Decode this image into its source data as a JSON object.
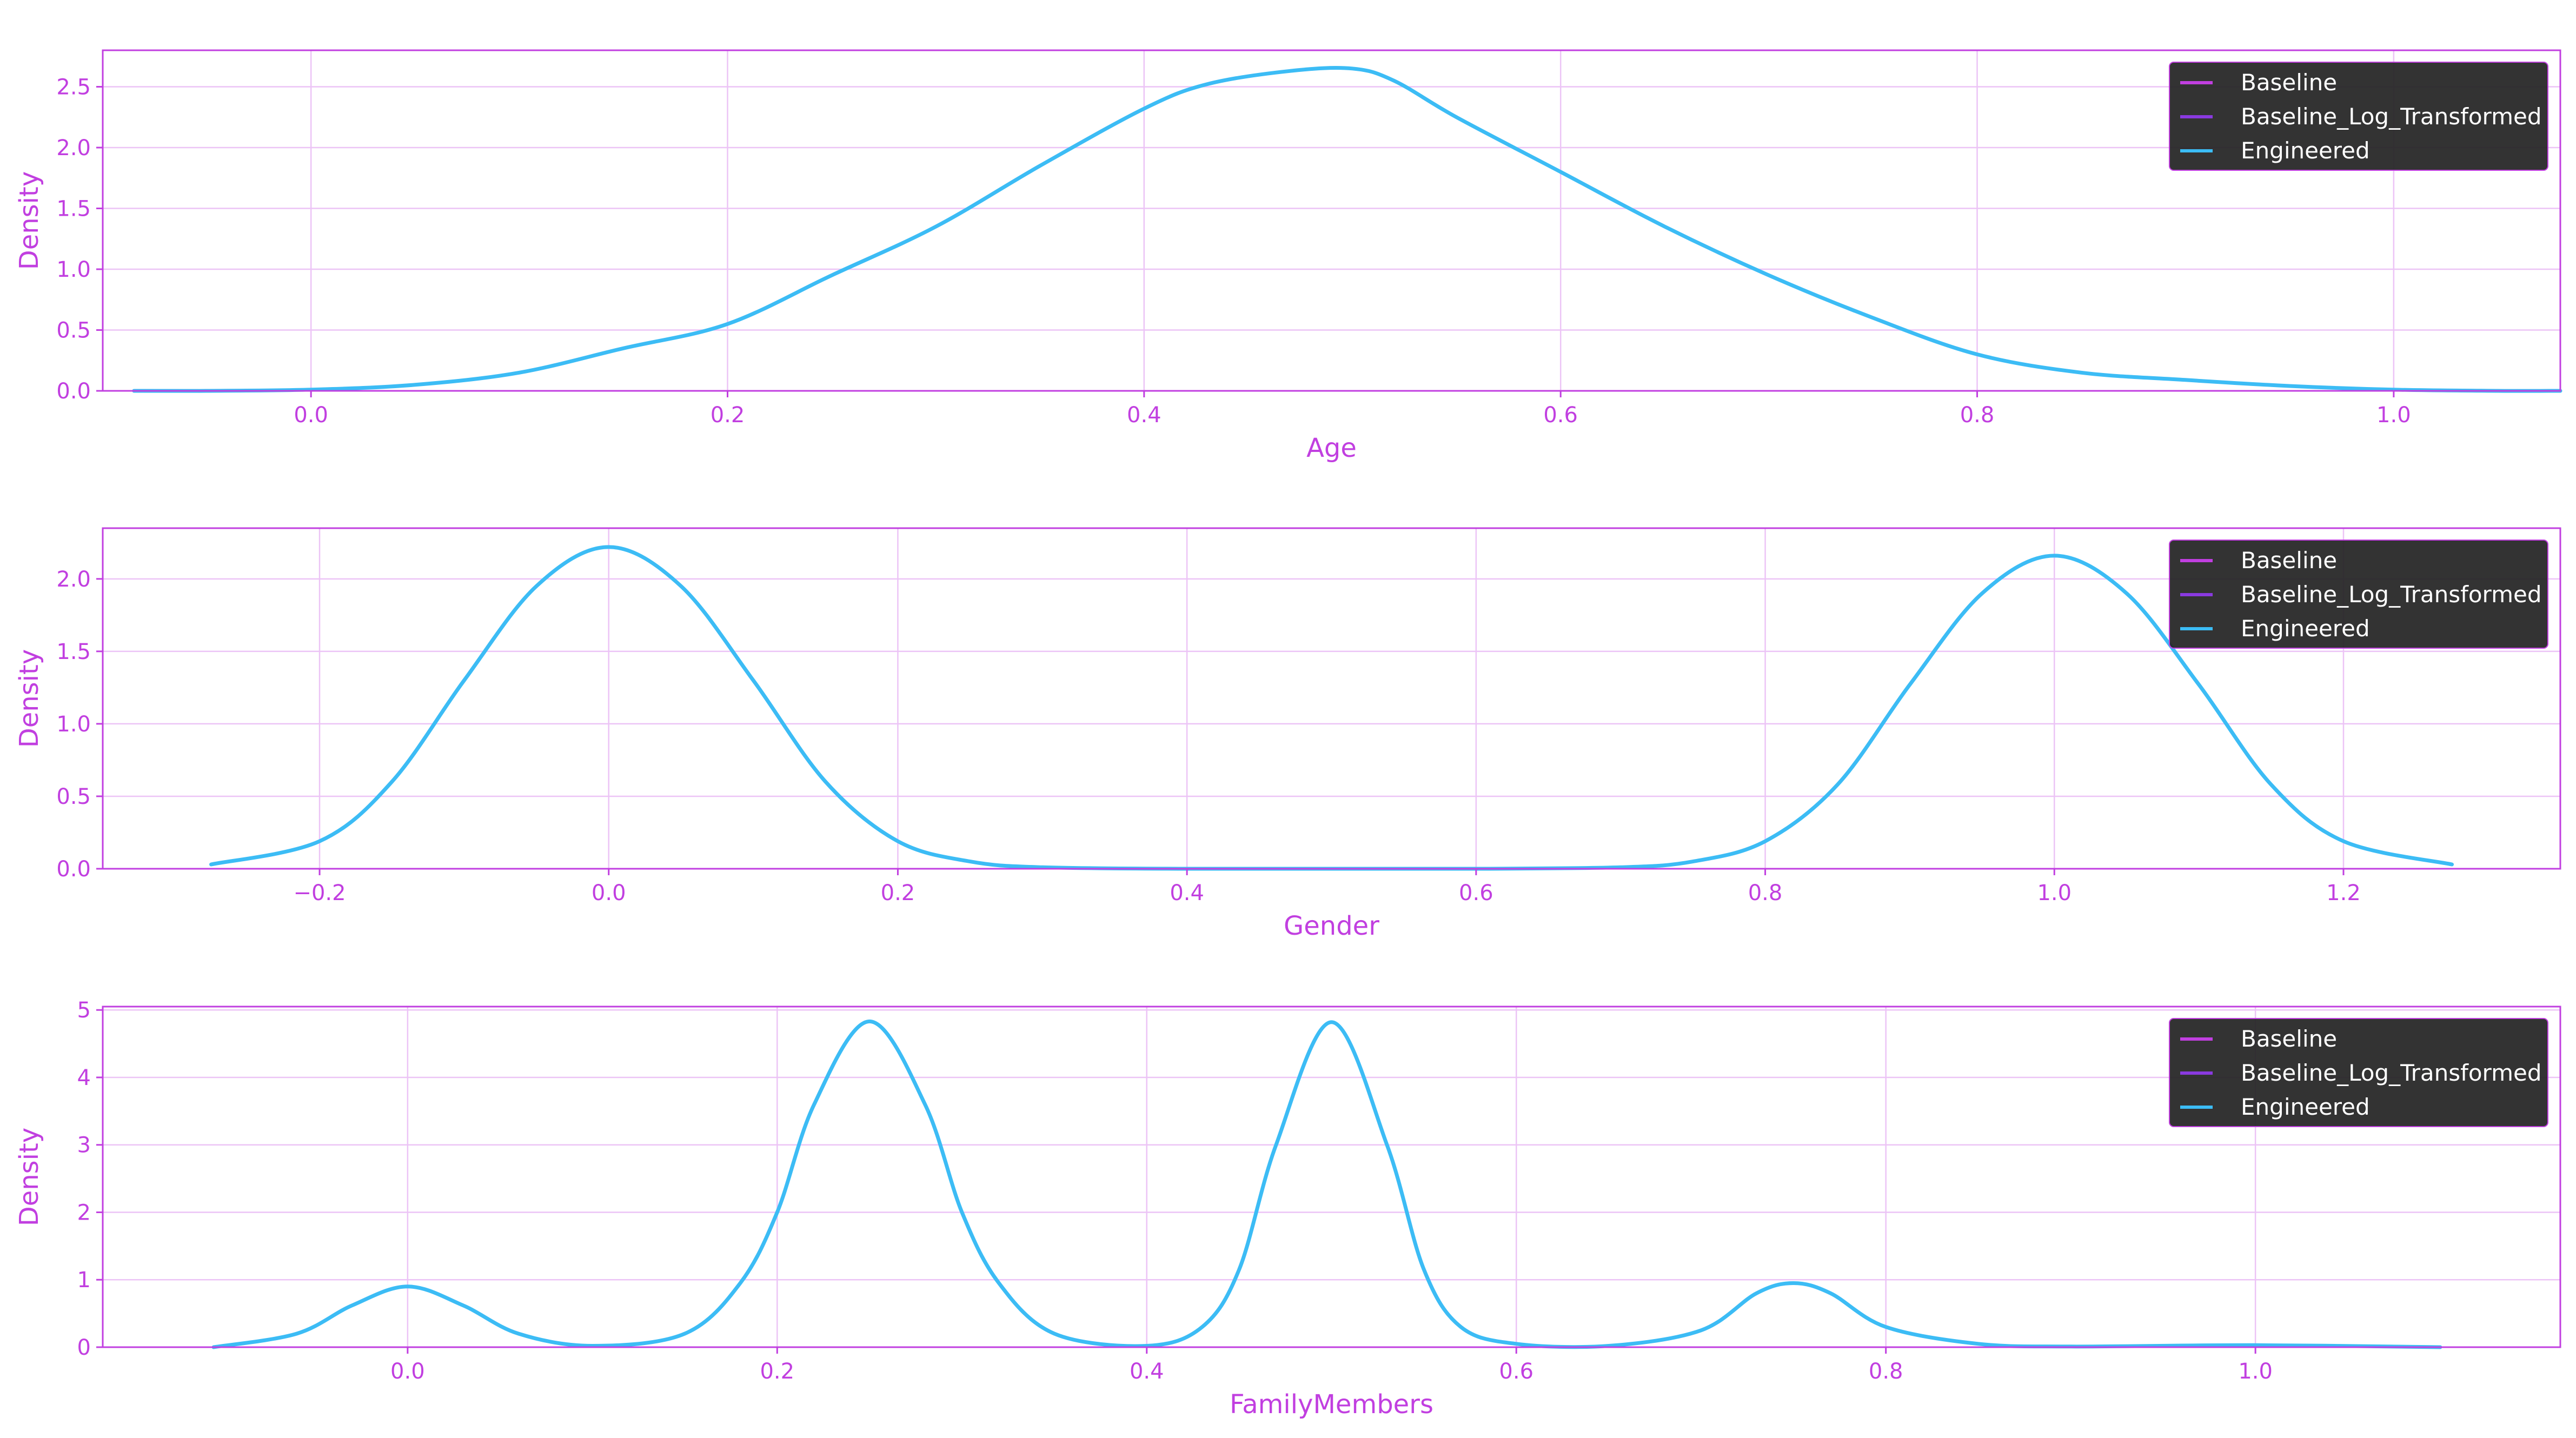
{
  "colors": {
    "accent": "#c13fe0",
    "grid": "#ecc4f6",
    "legend_bg": "#222222",
    "Baseline": "#c13fe0",
    "Baseline_Log_Transformed": "#8a3ae0",
    "Engineered": "#3cbcf5"
  },
  "chart_data": [
    {
      "type": "line",
      "title": "",
      "xlabel": "Age",
      "ylabel": "Density",
      "xlim": [
        -0.1,
        1.08
      ],
      "ylim": [
        0,
        2.8
      ],
      "xticks": [
        0.0,
        0.2,
        0.4,
        0.6,
        0.8,
        1.0
      ],
      "xtick_labels": [
        "0.0",
        "0.2",
        "0.4",
        "0.6",
        "0.8",
        "1.0"
      ],
      "yticks": [
        0.0,
        0.5,
        1.0,
        1.5,
        2.0,
        2.5
      ],
      "ytick_labels": [
        "0.0",
        "0.5",
        "1.0",
        "1.5",
        "2.0",
        "2.5"
      ],
      "grid": true,
      "legend": {
        "position": "top-right",
        "entries": [
          "Baseline",
          "Baseline_Log_Transformed",
          "Engineered"
        ]
      },
      "series": [
        {
          "name": "Baseline",
          "x": [],
          "y": []
        },
        {
          "name": "Baseline_Log_Transformed",
          "x": [],
          "y": []
        },
        {
          "name": "Engineered",
          "x": [
            -0.085,
            -0.05,
            0.0,
            0.05,
            0.1,
            0.15,
            0.2,
            0.25,
            0.3,
            0.35,
            0.4,
            0.43,
            0.47,
            0.5,
            0.52,
            0.55,
            0.6,
            0.65,
            0.7,
            0.75,
            0.8,
            0.85,
            0.9,
            0.95,
            1.0,
            1.05,
            1.08
          ],
          "y": [
            0.0,
            0.0,
            0.01,
            0.05,
            0.15,
            0.35,
            0.55,
            0.95,
            1.35,
            1.85,
            2.32,
            2.52,
            2.63,
            2.65,
            2.55,
            2.25,
            1.8,
            1.35,
            0.95,
            0.6,
            0.3,
            0.15,
            0.09,
            0.04,
            0.01,
            0.0,
            0.0
          ]
        }
      ]
    },
    {
      "type": "line",
      "title": "",
      "xlabel": "Gender",
      "ylabel": "Density",
      "xlim": [
        -0.35,
        1.35
      ],
      "ylim": [
        0,
        2.35
      ],
      "xticks": [
        -0.2,
        0.0,
        0.2,
        0.4,
        0.6,
        0.8,
        1.0,
        1.2
      ],
      "xtick_labels": [
        "−0.2",
        "0.0",
        "0.2",
        "0.4",
        "0.6",
        "0.8",
        "1.0",
        "1.2"
      ],
      "yticks": [
        0.0,
        0.5,
        1.0,
        1.5,
        2.0
      ],
      "ytick_labels": [
        "0.0",
        "0.5",
        "1.0",
        "1.5",
        "2.0"
      ],
      "grid": true,
      "legend": {
        "position": "top-right",
        "entries": [
          "Baseline",
          "Baseline_Log_Transformed",
          "Engineered"
        ]
      },
      "series": [
        {
          "name": "Baseline",
          "x": [],
          "y": []
        },
        {
          "name": "Baseline_Log_Transformed",
          "x": [],
          "y": []
        },
        {
          "name": "Engineered",
          "x": [
            -0.275,
            -0.2,
            -0.15,
            -0.1,
            -0.05,
            0.0,
            0.05,
            0.1,
            0.15,
            0.2,
            0.25,
            0.3,
            0.4,
            0.5,
            0.6,
            0.7,
            0.75,
            0.8,
            0.85,
            0.9,
            0.95,
            1.0,
            1.05,
            1.1,
            1.15,
            1.2,
            1.275
          ],
          "y": [
            0.03,
            0.19,
            0.6,
            1.3,
            1.95,
            2.22,
            1.95,
            1.3,
            0.6,
            0.19,
            0.05,
            0.01,
            0.0,
            0.0,
            0.0,
            0.01,
            0.05,
            0.19,
            0.58,
            1.27,
            1.9,
            2.16,
            1.9,
            1.27,
            0.58,
            0.19,
            0.03
          ]
        }
      ]
    },
    {
      "type": "line",
      "title": "",
      "xlabel": "FamilyMembers",
      "ylabel": "Density",
      "xlim": [
        -0.165,
        1.165
      ],
      "ylim": [
        0,
        5.05
      ],
      "xticks": [
        0.0,
        0.2,
        0.4,
        0.6,
        0.8,
        1.0
      ],
      "xtick_labels": [
        "0.0",
        "0.2",
        "0.4",
        "0.6",
        "0.8",
        "1.0"
      ],
      "yticks": [
        0,
        1,
        2,
        3,
        4,
        5
      ],
      "ytick_labels": [
        "0",
        "1",
        "2",
        "3",
        "4",
        "5"
      ],
      "grid": true,
      "legend": {
        "position": "top-right",
        "entries": [
          "Baseline",
          "Baseline_Log_Transformed",
          "Engineered"
        ]
      },
      "series": [
        {
          "name": "Baseline",
          "x": [],
          "y": []
        },
        {
          "name": "Baseline_Log_Transformed",
          "x": [],
          "y": []
        },
        {
          "name": "Engineered",
          "x": [
            -0.105,
            -0.06,
            -0.03,
            0.0,
            0.03,
            0.06,
            0.1,
            0.15,
            0.18,
            0.2,
            0.22,
            0.25,
            0.28,
            0.3,
            0.32,
            0.35,
            0.4,
            0.43,
            0.45,
            0.47,
            0.5,
            0.53,
            0.55,
            0.57,
            0.6,
            0.65,
            0.7,
            0.73,
            0.75,
            0.77,
            0.8,
            0.85,
            0.9,
            1.0,
            1.1
          ],
          "y": [
            0.0,
            0.2,
            0.62,
            0.9,
            0.62,
            0.2,
            0.02,
            0.2,
            0.95,
            2.0,
            3.6,
            4.83,
            3.6,
            2.0,
            0.95,
            0.2,
            0.02,
            0.3,
            1.15,
            3.0,
            4.82,
            3.0,
            1.15,
            0.3,
            0.05,
            0.02,
            0.25,
            0.8,
            0.95,
            0.8,
            0.3,
            0.05,
            0.01,
            0.03,
            0.0
          ]
        }
      ]
    }
  ]
}
